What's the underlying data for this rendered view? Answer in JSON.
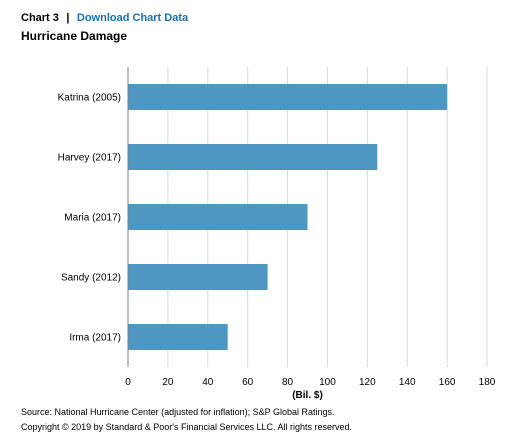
{
  "header": {
    "chart_number": "Chart 3",
    "separator": "|",
    "download_link": "Download Chart Data"
  },
  "footer": {
    "source": "Source: National Hurricane Center (adjusted for inflation); S&P Global Ratings.",
    "copyright": "Copyright © 2019 by Standard & Poor's Financial Services LLC. All rights reserved."
  },
  "colors": {
    "bar": "#4e97c2",
    "grid": "#d9d9d9",
    "axis": "#808080"
  },
  "chart_data": {
    "type": "bar",
    "orientation": "horizontal",
    "title": "Hurricane Damage",
    "xlabel": "(Bil. $)",
    "ylabel": "",
    "categories": [
      "Katrina (2005)",
      "Harvey (2017)",
      "Maria (2017)",
      "Sandy (2012)",
      "Irma (2017)"
    ],
    "values": [
      160,
      125,
      90,
      70,
      50
    ],
    "xlim": [
      0,
      180
    ],
    "xticks": [
      0,
      20,
      40,
      60,
      80,
      100,
      120,
      140,
      160,
      180
    ],
    "grid": true,
    "legend": "none"
  }
}
